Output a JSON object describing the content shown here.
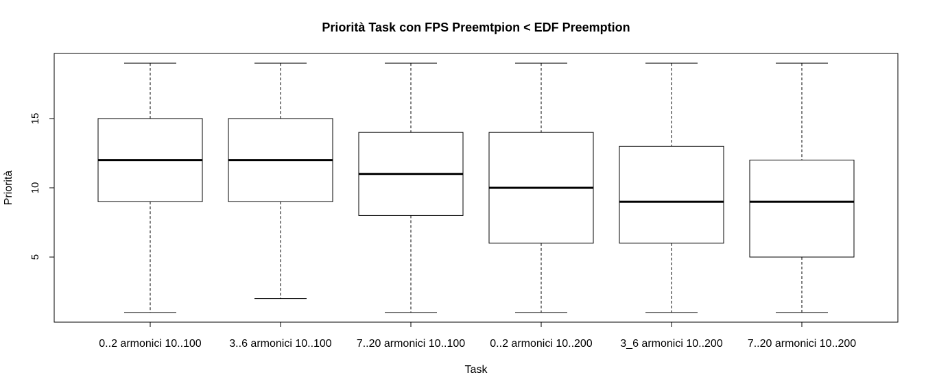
{
  "chart_data": {
    "type": "boxplot",
    "title": "Priorità Task con FPS Preemtpion < EDF Preemption",
    "xlabel": "Task",
    "ylabel": "Priorità",
    "ylim": [
      0.3,
      19.7
    ],
    "yticks": [
      5,
      10,
      15
    ],
    "grid": false,
    "categories": [
      "0..2 armonici 10..100",
      "3..6 armonici 10..100",
      "7..20 armonici 10..100",
      "0..2 armonici 10..200",
      "3_6 armonici 10..200",
      "7..20 armonici 10..200"
    ],
    "boxes": [
      {
        "whisker_low": 1,
        "q1": 9,
        "median": 12,
        "q3": 15,
        "whisker_high": 19
      },
      {
        "whisker_low": 2,
        "q1": 9,
        "median": 12,
        "q3": 15,
        "whisker_high": 19
      },
      {
        "whisker_low": 1,
        "q1": 8,
        "median": 11,
        "q3": 14,
        "whisker_high": 19
      },
      {
        "whisker_low": 1,
        "q1": 6,
        "median": 10,
        "q3": 14,
        "whisker_high": 19
      },
      {
        "whisker_low": 1,
        "q1": 6,
        "median": 9,
        "q3": 13,
        "whisker_high": 19
      },
      {
        "whisker_low": 1,
        "q1": 5,
        "median": 9,
        "q3": 12,
        "whisker_high": 19
      }
    ]
  }
}
